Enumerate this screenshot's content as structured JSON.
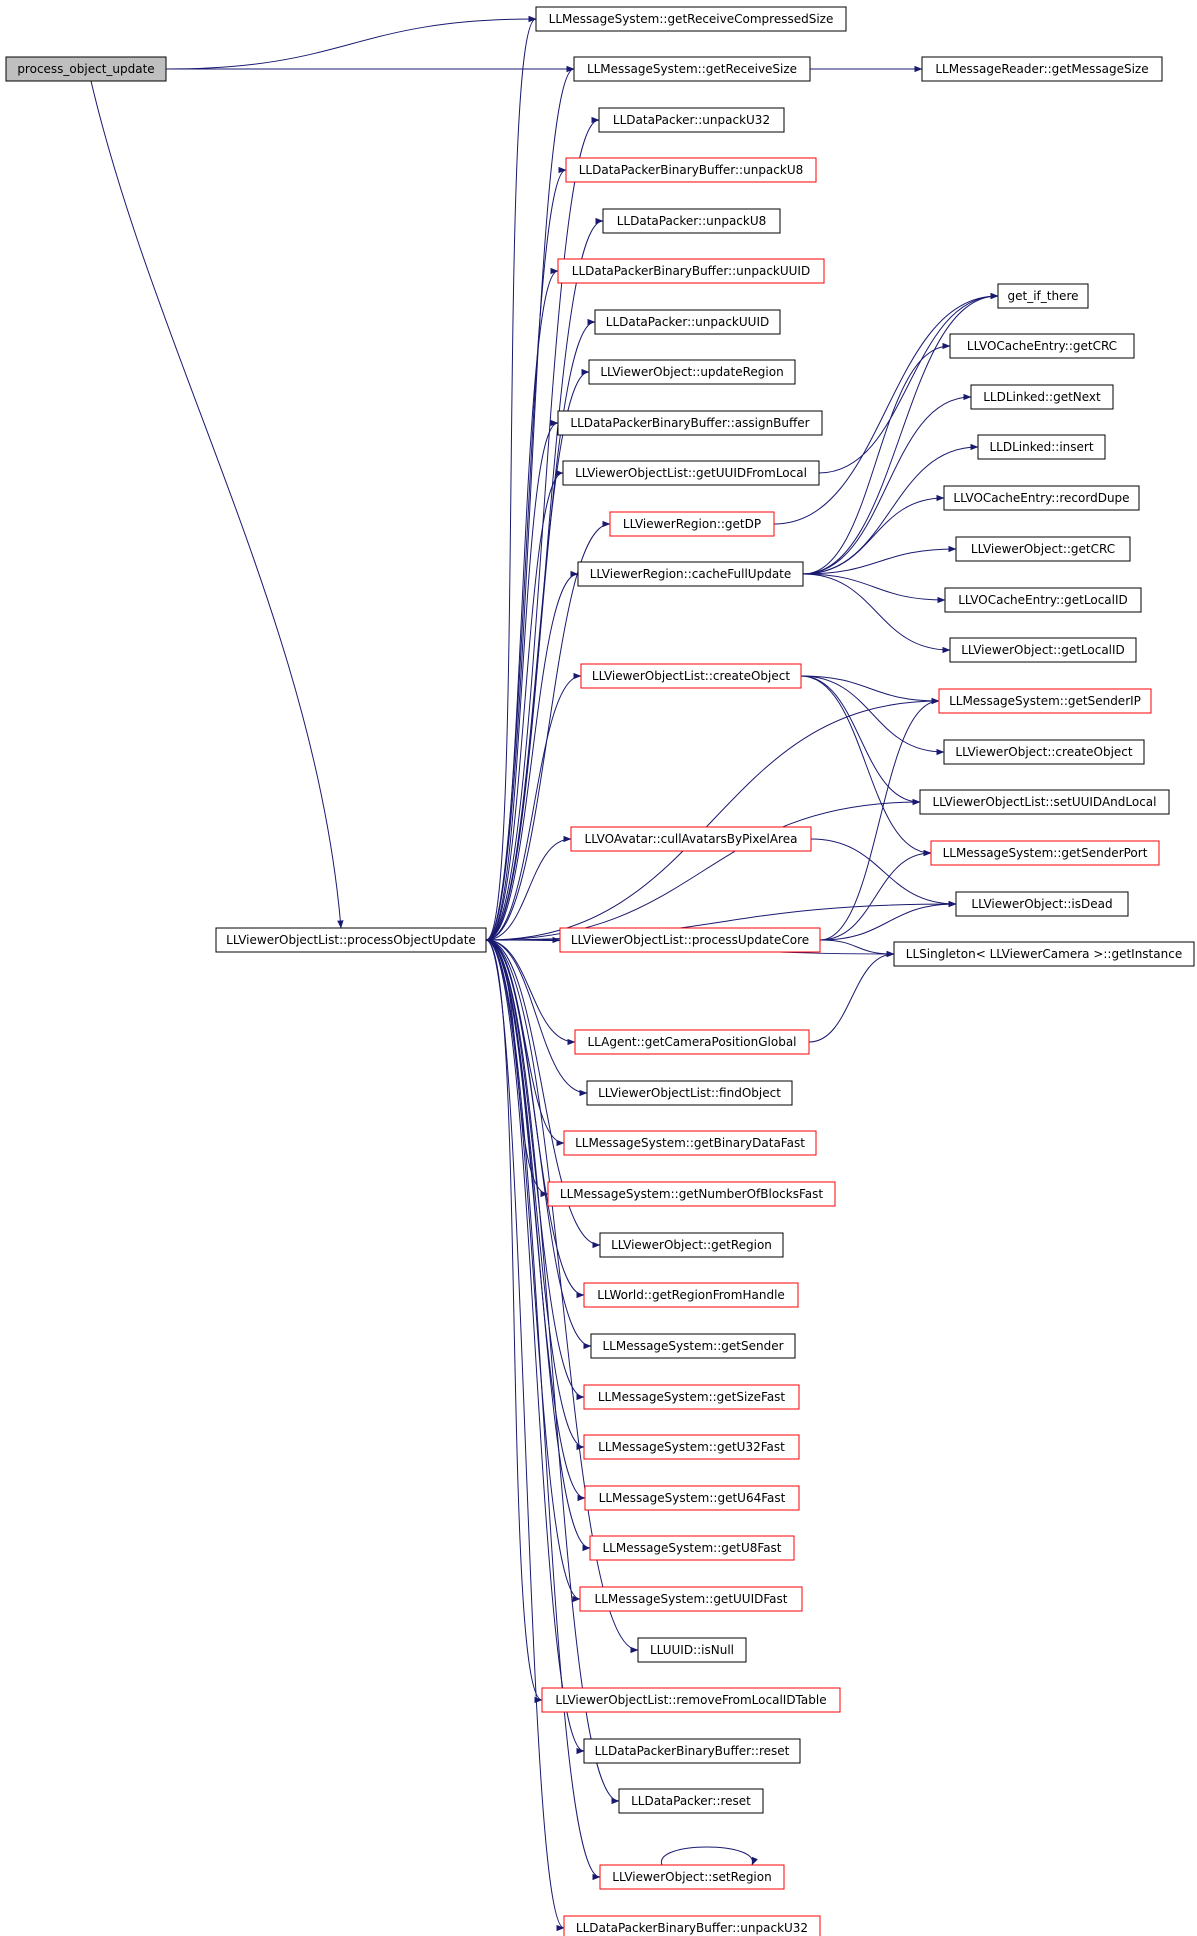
{
  "colors": {
    "edge": "#191970",
    "border_normal": "#000000",
    "border_red": "#ff0000",
    "root_fill": "#bfbfbf",
    "node_fill": "#ffffff"
  },
  "nodes": [
    {
      "id": "process_object_update",
      "label": "process_object_update",
      "style": "root"
    },
    {
      "id": "getReceiveCompressedSize",
      "label": "LLMessageSystem::getReceiveCompressedSize",
      "style": "normal"
    },
    {
      "id": "getReceiveSize",
      "label": "LLMessageSystem::getReceiveSize",
      "style": "normal"
    },
    {
      "id": "getMessageSize",
      "label": "LLMessageReader::getMessageSize",
      "style": "normal"
    },
    {
      "id": "unpackU32",
      "label": "LLDataPacker::unpackU32",
      "style": "normal"
    },
    {
      "id": "bb_unpackU8",
      "label": "LLDataPackerBinaryBuffer::unpackU8",
      "style": "red"
    },
    {
      "id": "unpackU8",
      "label": "LLDataPacker::unpackU8",
      "style": "normal"
    },
    {
      "id": "bb_unpackUUID",
      "label": "LLDataPackerBinaryBuffer::unpackUUID",
      "style": "red"
    },
    {
      "id": "unpackUUID",
      "label": "LLDataPacker::unpackUUID",
      "style": "normal"
    },
    {
      "id": "updateRegion",
      "label": "LLViewerObject::updateRegion",
      "style": "normal"
    },
    {
      "id": "assignBuffer",
      "label": "LLDataPackerBinaryBuffer::assignBuffer",
      "style": "normal"
    },
    {
      "id": "getUUIDFromLocal",
      "label": "LLViewerObjectList::getUUIDFromLocal",
      "style": "normal"
    },
    {
      "id": "getDP",
      "label": "LLViewerRegion::getDP",
      "style": "red"
    },
    {
      "id": "cacheFullUpdate",
      "label": "LLViewerRegion::cacheFullUpdate",
      "style": "normal"
    },
    {
      "id": "createObject",
      "label": "LLViewerObjectList::createObject",
      "style": "red"
    },
    {
      "id": "cullAvatars",
      "label": "LLVOAvatar::cullAvatarsByPixelArea",
      "style": "red"
    },
    {
      "id": "processObjectUpdate",
      "label": "LLViewerObjectList::processObjectUpdate",
      "style": "normal"
    },
    {
      "id": "processUpdateCore",
      "label": "LLViewerObjectList::processUpdateCore",
      "style": "red"
    },
    {
      "id": "getCameraPositionGlobal",
      "label": "LLAgent::getCameraPositionGlobal",
      "style": "red"
    },
    {
      "id": "findObject",
      "label": "LLViewerObjectList::findObject",
      "style": "normal"
    },
    {
      "id": "getBinaryDataFast",
      "label": "LLMessageSystem::getBinaryDataFast",
      "style": "red"
    },
    {
      "id": "getNumberOfBlocksFast",
      "label": "LLMessageSystem::getNumberOfBlocksFast",
      "style": "red"
    },
    {
      "id": "getRegion",
      "label": "LLViewerObject::getRegion",
      "style": "normal"
    },
    {
      "id": "getRegionFromHandle",
      "label": "LLWorld::getRegionFromHandle",
      "style": "red"
    },
    {
      "id": "getSender",
      "label": "LLMessageSystem::getSender",
      "style": "normal"
    },
    {
      "id": "getSizeFast",
      "label": "LLMessageSystem::getSizeFast",
      "style": "red"
    },
    {
      "id": "getU32Fast",
      "label": "LLMessageSystem::getU32Fast",
      "style": "red"
    },
    {
      "id": "getU64Fast",
      "label": "LLMessageSystem::getU64Fast",
      "style": "red"
    },
    {
      "id": "getU8Fast",
      "label": "LLMessageSystem::getU8Fast",
      "style": "red"
    },
    {
      "id": "getUUIDFast",
      "label": "LLMessageSystem::getUUIDFast",
      "style": "red"
    },
    {
      "id": "isNull",
      "label": "LLUUID::isNull",
      "style": "normal"
    },
    {
      "id": "removeFromLocalIDTable",
      "label": "LLViewerObjectList::removeFromLocalIDTable",
      "style": "red"
    },
    {
      "id": "bb_reset",
      "label": "LLDataPackerBinaryBuffer::reset",
      "style": "normal"
    },
    {
      "id": "dp_reset",
      "label": "LLDataPacker::reset",
      "style": "normal"
    },
    {
      "id": "setRegion",
      "label": "LLViewerObject::setRegion",
      "style": "red"
    },
    {
      "id": "bb_unpackU32",
      "label": "LLDataPackerBinaryBuffer::unpackU32",
      "style": "red"
    },
    {
      "id": "get_if_there",
      "label": "get_if_there",
      "style": "normal"
    },
    {
      "id": "ce_getCRC",
      "label": "LLVOCacheEntry::getCRC",
      "style": "normal"
    },
    {
      "id": "getNext",
      "label": "LLDLinked::getNext",
      "style": "normal"
    },
    {
      "id": "insert",
      "label": "LLDLinked::insert",
      "style": "normal"
    },
    {
      "id": "recordDupe",
      "label": "LLVOCacheEntry::recordDupe",
      "style": "normal"
    },
    {
      "id": "vo_getCRC",
      "label": "LLViewerObject::getCRC",
      "style": "normal"
    },
    {
      "id": "ce_getLocalID",
      "label": "LLVOCacheEntry::getLocalID",
      "style": "normal"
    },
    {
      "id": "vo_getLocalID",
      "label": "LLViewerObject::getLocalID",
      "style": "normal"
    },
    {
      "id": "getSenderIP",
      "label": "LLMessageSystem::getSenderIP",
      "style": "red"
    },
    {
      "id": "vo_createObject",
      "label": "LLViewerObject::createObject",
      "style": "normal"
    },
    {
      "id": "setUUIDAndLocal",
      "label": "LLViewerObjectList::setUUIDAndLocal",
      "style": "normal"
    },
    {
      "id": "getSenderPort",
      "label": "LLMessageSystem::getSenderPort",
      "style": "red"
    },
    {
      "id": "isDead",
      "label": "LLViewerObject::isDead",
      "style": "normal"
    },
    {
      "id": "getInstance",
      "label": "LLSingleton< LLViewerCamera >::getInstance",
      "style": "normal"
    }
  ],
  "edges": [
    [
      "process_object_update",
      "getReceiveCompressedSize"
    ],
    [
      "process_object_update",
      "getReceiveSize"
    ],
    [
      "process_object_update",
      "processObjectUpdate"
    ],
    [
      "getReceiveSize",
      "getMessageSize"
    ],
    [
      "processObjectUpdate",
      "getReceiveCompressedSize"
    ],
    [
      "processObjectUpdate",
      "getReceiveSize"
    ],
    [
      "processObjectUpdate",
      "unpackU32"
    ],
    [
      "processObjectUpdate",
      "bb_unpackU8"
    ],
    [
      "processObjectUpdate",
      "unpackU8"
    ],
    [
      "processObjectUpdate",
      "bb_unpackUUID"
    ],
    [
      "processObjectUpdate",
      "unpackUUID"
    ],
    [
      "processObjectUpdate",
      "updateRegion"
    ],
    [
      "processObjectUpdate",
      "assignBuffer"
    ],
    [
      "processObjectUpdate",
      "getUUIDFromLocal"
    ],
    [
      "processObjectUpdate",
      "getDP"
    ],
    [
      "processObjectUpdate",
      "cacheFullUpdate"
    ],
    [
      "processObjectUpdate",
      "createObject"
    ],
    [
      "processObjectUpdate",
      "cullAvatars"
    ],
    [
      "processObjectUpdate",
      "processUpdateCore"
    ],
    [
      "processObjectUpdate",
      "getCameraPositionGlobal"
    ],
    [
      "processObjectUpdate",
      "findObject"
    ],
    [
      "processObjectUpdate",
      "getBinaryDataFast"
    ],
    [
      "processObjectUpdate",
      "getNumberOfBlocksFast"
    ],
    [
      "processObjectUpdate",
      "getRegion"
    ],
    [
      "processObjectUpdate",
      "getRegionFromHandle"
    ],
    [
      "processObjectUpdate",
      "getSender"
    ],
    [
      "processObjectUpdate",
      "getSizeFast"
    ],
    [
      "processObjectUpdate",
      "getU32Fast"
    ],
    [
      "processObjectUpdate",
      "getU64Fast"
    ],
    [
      "processObjectUpdate",
      "getU8Fast"
    ],
    [
      "processObjectUpdate",
      "getUUIDFast"
    ],
    [
      "processObjectUpdate",
      "isNull"
    ],
    [
      "processObjectUpdate",
      "removeFromLocalIDTable"
    ],
    [
      "processObjectUpdate",
      "bb_reset"
    ],
    [
      "processObjectUpdate",
      "dp_reset"
    ],
    [
      "processObjectUpdate",
      "setRegion"
    ],
    [
      "processObjectUpdate",
      "bb_unpackU32"
    ],
    [
      "processObjectUpdate",
      "getSenderIP"
    ],
    [
      "processObjectUpdate",
      "setUUIDAndLocal"
    ],
    [
      "processObjectUpdate",
      "isDead"
    ],
    [
      "processObjectUpdate",
      "getInstance"
    ],
    [
      "getUUIDFromLocal",
      "get_if_there"
    ],
    [
      "getDP",
      "get_if_there"
    ],
    [
      "cacheFullUpdate",
      "get_if_there"
    ],
    [
      "cacheFullUpdate",
      "ce_getCRC"
    ],
    [
      "cacheFullUpdate",
      "getNext"
    ],
    [
      "cacheFullUpdate",
      "insert"
    ],
    [
      "cacheFullUpdate",
      "recordDupe"
    ],
    [
      "cacheFullUpdate",
      "vo_getCRC"
    ],
    [
      "cacheFullUpdate",
      "ce_getLocalID"
    ],
    [
      "cacheFullUpdate",
      "vo_getLocalID"
    ],
    [
      "createObject",
      "getSenderIP"
    ],
    [
      "createObject",
      "vo_createObject"
    ],
    [
      "createObject",
      "setUUIDAndLocal"
    ],
    [
      "createObject",
      "getSenderPort"
    ],
    [
      "cullAvatars",
      "isDead"
    ],
    [
      "processUpdateCore",
      "getSenderIP"
    ],
    [
      "processUpdateCore",
      "getSenderPort"
    ],
    [
      "processUpdateCore",
      "isDead"
    ],
    [
      "processUpdateCore",
      "getInstance"
    ],
    [
      "getCameraPositionGlobal",
      "getInstance"
    ],
    [
      "setRegion",
      "setRegion"
    ]
  ]
}
